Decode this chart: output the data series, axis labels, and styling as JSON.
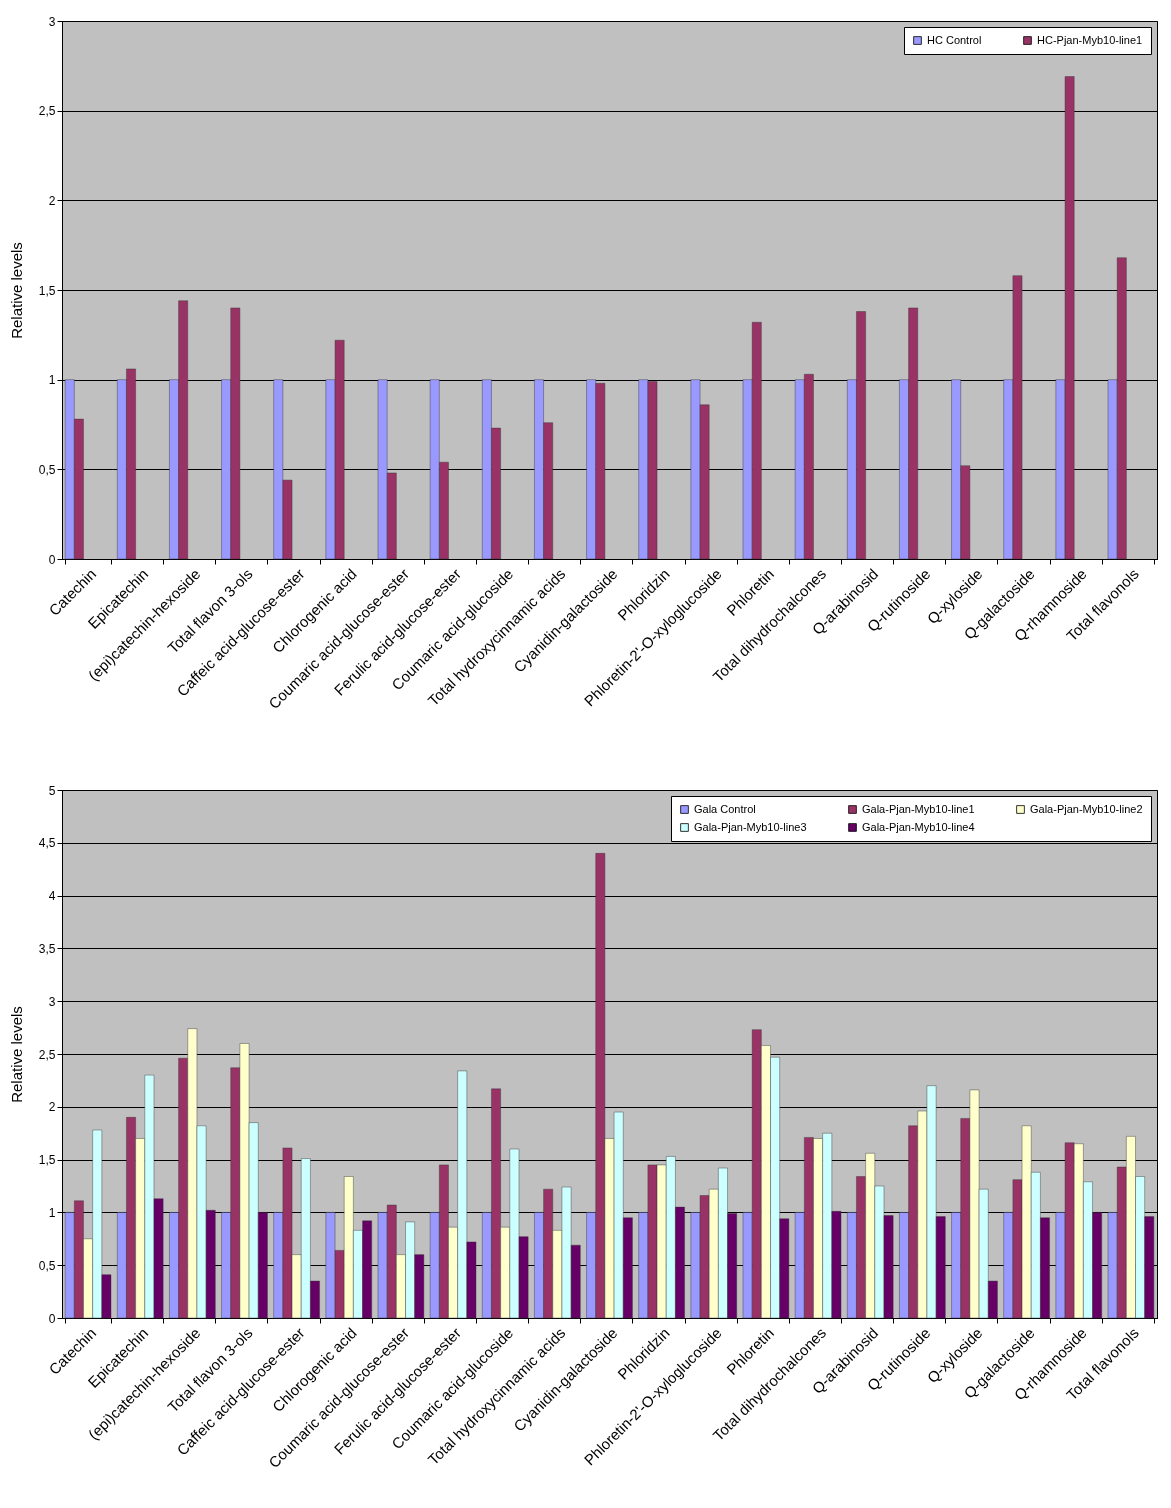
{
  "chart_data": [
    {
      "type": "bar",
      "ylabel": "Relative levels",
      "categories": [
        "Catechin",
        "Epicatechin",
        "(epi)catechin-hexoside",
        "Total  flavon 3-ols",
        "Caffeic acid-glucose-ester",
        "Chlorogenic acid",
        "Coumaric acid-glucose-ester",
        "Ferulic acid-glucose-ester",
        "Coumaric acid-glucoside",
        "Total hydroxycinnamic acids",
        "Cyanidin-galactoside",
        "Phloridzin",
        "Phloretin-2'-O-xyloglucoside",
        "Phloretin",
        "Total dihydrochalcones",
        "Q-arabinosid",
        "Q-rutinoside",
        "Q-xyloside",
        "Q-galactoside",
        "Q-rhamnoside",
        "Total flavonols"
      ],
      "series": [
        {
          "name": "HC Control",
          "color": "#9999ff",
          "values": [
            1,
            1,
            1,
            1,
            1,
            1,
            1,
            1,
            1,
            1,
            1,
            1,
            1,
            1,
            1,
            1,
            1,
            1,
            1,
            1,
            1
          ]
        },
        {
          "name": "HC-Pjan-Myb10-line1",
          "color": "#993366",
          "values": [
            0.78,
            1.06,
            1.44,
            1.4,
            0.44,
            1.22,
            0.48,
            0.54,
            0.73,
            0.76,
            0.98,
            0.99,
            0.86,
            1.32,
            1.03,
            1.38,
            1.4,
            0.52,
            1.58,
            2.69,
            1.68
          ]
        }
      ],
      "ylim": [
        0,
        3
      ],
      "yticks": [
        0,
        {
          "value": 0.5,
          "label": "0,5"
        },
        1,
        {
          "value": 1.5,
          "label": "1,5"
        },
        2,
        {
          "value": 2.5,
          "label": "2,5"
        },
        3
      ],
      "grid": "y",
      "legend": "top right"
    },
    {
      "type": "bar",
      "ylabel": "Relative levels",
      "categories": [
        "Catechin",
        "Epicatechin",
        "(epi)catechin-hexoside",
        "Total  flavon 3-ols",
        "Caffeic acid-glucose-ester",
        "Chlorogenic acid",
        "Coumaric acid-glucose-ester",
        "Ferulic acid-glucose-ester",
        "Coumaric acid-glucoside",
        "Total hydroxycinnamic acids",
        "Cyanidin-galactoside",
        "Phloridzin",
        "Phloretin-2'-O-xyloglucoside",
        "Phloretin",
        "Total dihydrochalcones",
        "Q-arabinosid",
        "Q-rutinoside",
        "Q-xyloside",
        "Q-galactoside",
        "Q-rhamnoside",
        "Total flavonols"
      ],
      "series": [
        {
          "name": "Gala Control",
          "color": "#9999ff",
          "values": [
            1,
            1,
            1,
            1,
            1,
            1,
            1,
            1,
            1,
            1,
            1,
            1,
            1,
            1,
            1,
            1,
            1,
            1,
            1,
            1,
            1
          ]
        },
        {
          "name": "Gala-Pjan-Myb10-line1",
          "color": "#993366",
          "values": [
            1.11,
            1.9,
            2.46,
            2.37,
            1.61,
            0.64,
            1.07,
            1.45,
            2.17,
            1.22,
            4.4,
            1.45,
            1.16,
            2.73,
            1.71,
            1.34,
            1.82,
            1.89,
            1.31,
            1.66,
            1.43
          ]
        },
        {
          "name": "Gala-Pjan-Myb10-line2",
          "color": "#ffffcc",
          "values": [
            0.75,
            1.7,
            2.74,
            2.6,
            0.6,
            1.34,
            0.6,
            0.86,
            0.86,
            0.83,
            1.7,
            1.45,
            1.22,
            2.58,
            1.7,
            1.56,
            1.96,
            2.16,
            1.82,
            1.65,
            1.72
          ]
        },
        {
          "name": "Gala-Pjan-Myb10-line3",
          "color": "#ccffff",
          "values": [
            1.78,
            2.3,
            1.82,
            1.85,
            1.51,
            0.83,
            0.91,
            2.34,
            1.6,
            1.24,
            1.95,
            1.53,
            1.42,
            2.47,
            1.75,
            1.25,
            2.2,
            1.22,
            1.38,
            1.29,
            1.34
          ]
        },
        {
          "name": "Gala-Pjan-Myb10-line4",
          "color": "#660066",
          "values": [
            0.41,
            1.13,
            1.02,
            1.0,
            0.35,
            0.92,
            0.6,
            0.72,
            0.77,
            0.69,
            0.95,
            1.05,
            0.99,
            0.94,
            1.01,
            0.97,
            0.96,
            0.35,
            0.95,
            1.0,
            0.96
          ]
        }
      ],
      "ylim": [
        0,
        5
      ],
      "yticks": [
        0,
        {
          "value": 0.5,
          "label": "0,5"
        },
        1,
        {
          "value": 1.5,
          "label": "1,5"
        },
        2,
        {
          "value": 2.5,
          "label": "2,5"
        },
        3,
        {
          "value": 3.5,
          "label": "3,5"
        },
        4,
        {
          "value": 4.5,
          "label": "4,5"
        },
        5
      ],
      "grid": "y",
      "legend": "top right"
    }
  ]
}
